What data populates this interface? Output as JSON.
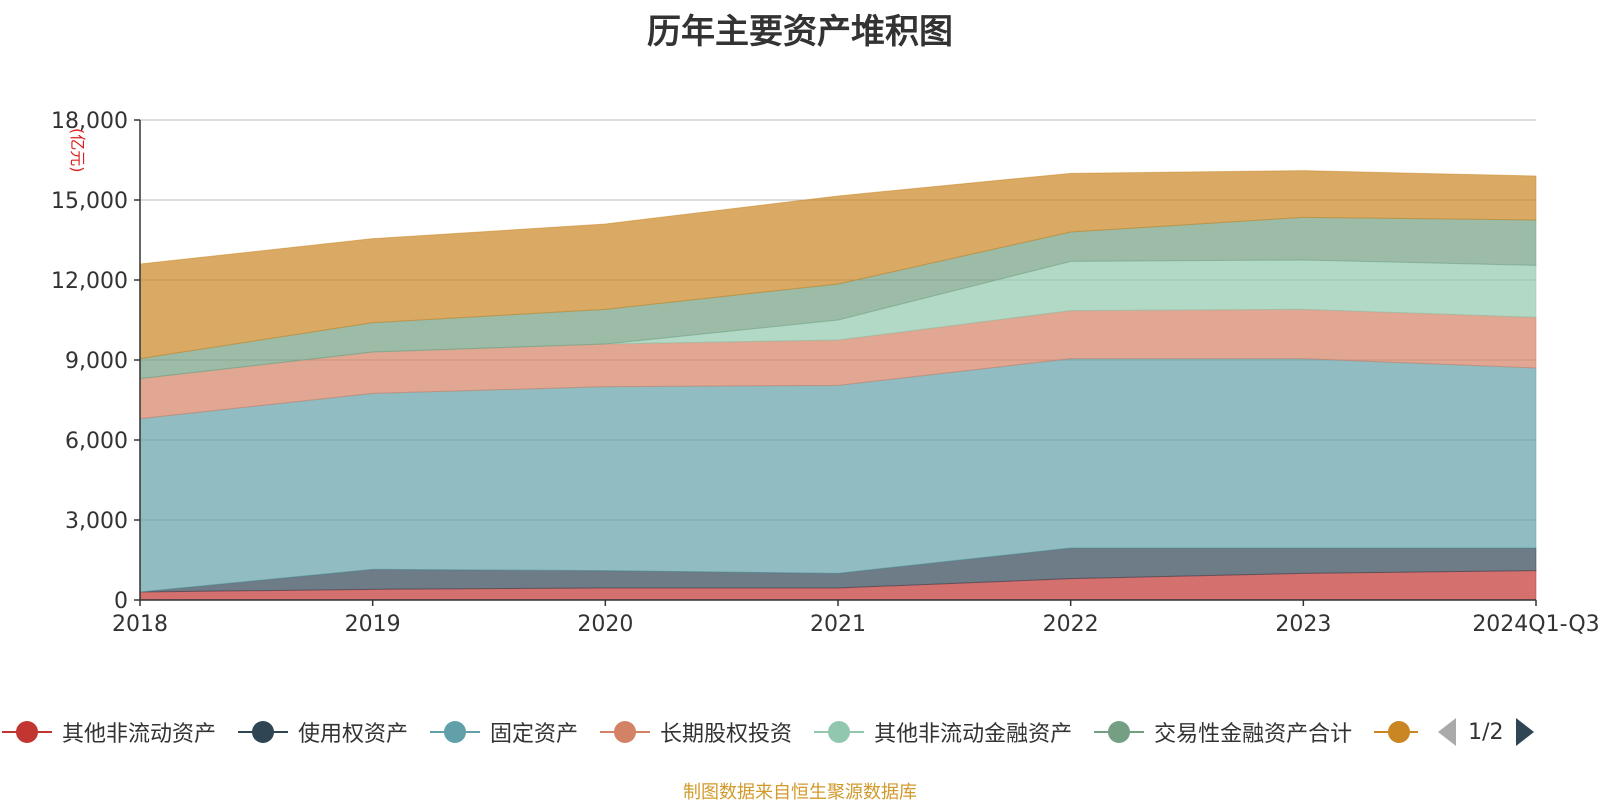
{
  "chart_data": {
    "type": "area",
    "stacked": true,
    "title": "历年主要资产堆积图",
    "unit_label": "(亿元)",
    "source_note": "制图数据来自恒生聚源数据库",
    "categories": [
      "2018",
      "2019",
      "2020",
      "2021",
      "2022",
      "2023",
      "2024Q1-Q3"
    ],
    "ylim": [
      0,
      18000
    ],
    "yticks": [
      0,
      3000,
      6000,
      9000,
      12000,
      15000,
      18000
    ],
    "ytick_labels": [
      "0",
      "3,000",
      "6,000",
      "9,000",
      "12,000",
      "15,000",
      "18,000"
    ],
    "grid": true,
    "series": [
      {
        "name": "其他非流动资产",
        "color": "#c23531",
        "values": [
          300,
          400,
          450,
          450,
          800,
          1000,
          1100
        ]
      },
      {
        "name": "使用权资产",
        "color": "#2f4554",
        "values": [
          0,
          750,
          650,
          550,
          1150,
          950,
          850
        ]
      },
      {
        "name": "固定资产",
        "color": "#61a0a8",
        "values": [
          6500,
          6600,
          6900,
          7050,
          7100,
          7100,
          6750
        ]
      },
      {
        "name": "长期股权投资",
        "color": "#d48265",
        "values": [
          1500,
          1550,
          1600,
          1700,
          1800,
          1850,
          1900
        ]
      },
      {
        "name": "其他非流动金融资产",
        "color": "#91c7ae",
        "values": [
          0,
          0,
          0,
          750,
          1850,
          1850,
          1950
        ]
      },
      {
        "name": "交易性金融资产合计",
        "color": "#749f83",
        "values": [
          750,
          1100,
          1300,
          1350,
          1100,
          1600,
          1700
        ]
      },
      {
        "name": "",
        "color": "#ca8622",
        "values": [
          3550,
          3150,
          3200,
          3300,
          2200,
          1750,
          1650
        ]
      }
    ],
    "legend": {
      "page": "1/2"
    }
  }
}
